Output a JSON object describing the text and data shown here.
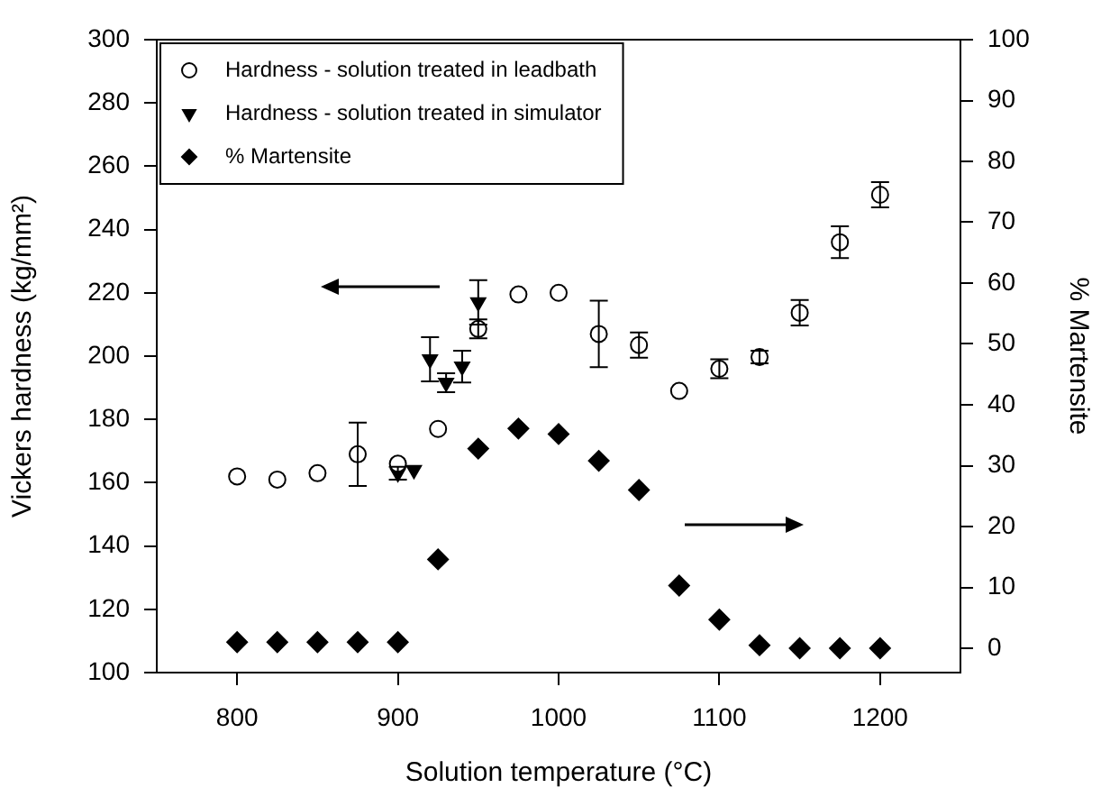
{
  "chart_data": {
    "type": "scatter",
    "xlabel": "Solution temperature (°C)",
    "ylabel": "Vickers hardness (kg/mm²)",
    "y2label": "% Martensite",
    "xlim": [
      750,
      1250
    ],
    "xticks": [
      800,
      900,
      1000,
      1100,
      1200
    ],
    "ylim": [
      100,
      300
    ],
    "yticks": [
      100,
      120,
      140,
      160,
      180,
      200,
      220,
      240,
      260,
      280,
      300
    ],
    "y2lim": [
      -4,
      100
    ],
    "y2ticks": [
      0,
      10,
      20,
      30,
      40,
      50,
      60,
      70,
      80,
      90,
      100
    ],
    "grid": false,
    "legend": "top left",
    "series": [
      {
        "name": "Hardness - solution treated in leadbath",
        "color": "#000000",
        "marker": "circle",
        "x": [
          800,
          825,
          850,
          875,
          900,
          925,
          950,
          975,
          1000,
          1025,
          1050,
          1075,
          1100,
          1125,
          1150,
          1175,
          1200
        ],
        "values": [
          162,
          161,
          163,
          169,
          166,
          177,
          208.6,
          219.5,
          220,
          207,
          203.5,
          189,
          196,
          199.7,
          213.7,
          236,
          251
        ],
        "errors": [
          null,
          null,
          null,
          10,
          null,
          null,
          3,
          null,
          null,
          10.5,
          4,
          null,
          3,
          2,
          4,
          5,
          4
        ]
      },
      {
        "name": "Hardness - solution treated in simulator",
        "color": "#000000",
        "marker": "triangle",
        "x": [
          900,
          910,
          920,
          930,
          940,
          950
        ],
        "values": [
          163,
          164,
          199,
          191.6,
          196.7,
          217
        ],
        "errors": [
          2,
          null,
          7,
          3,
          5,
          7
        ]
      },
      {
        "name": "% Martensite",
        "color": "#000000",
        "marker": "diamond",
        "axis": "y2",
        "x": [
          800,
          825,
          850,
          875,
          900,
          925,
          950,
          975,
          1000,
          1025,
          1050,
          1075,
          1100,
          1125,
          1150,
          1175,
          1200
        ],
        "values": [
          1,
          1,
          1,
          1,
          1,
          14.6,
          32.8,
          36.1,
          35.2,
          30.8,
          26,
          10.3,
          4.7,
          0.5,
          0,
          0,
          0
        ]
      }
    ]
  }
}
